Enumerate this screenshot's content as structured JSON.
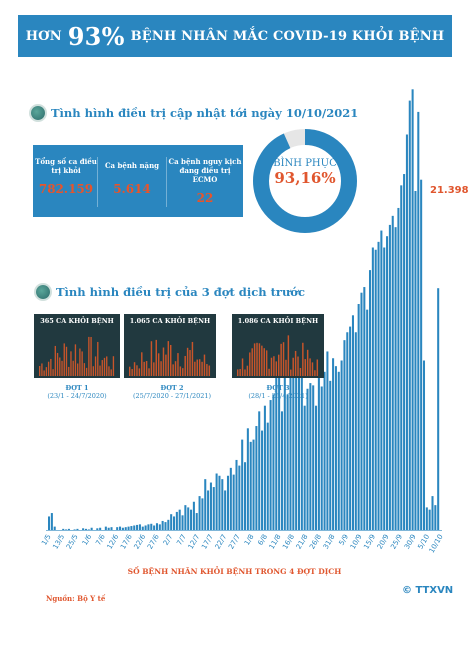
{
  "header": {
    "pre": "HƠN",
    "big": "93%",
    "post": "BỆNH NHÂN MẮC COVID-19 KHỎI BỆNH"
  },
  "section1": {
    "title": "Tình hình điều trị cập nhật tới ngày 10/10/2021"
  },
  "stats": [
    {
      "label": "Tổng số ca điều trị khỏi",
      "value": "782.159"
    },
    {
      "label": "Ca bệnh nặng",
      "value": "5.614"
    },
    {
      "label": "Ca bệnh nguy kịch đang điều trị ECMO",
      "value": "22"
    }
  ],
  "donut": {
    "label": "BÌNH PHỤC",
    "value_text": "93,16%",
    "percent": 93.16
  },
  "section2": {
    "title": "Tình hình điều trị của 3 đợt dịch trước"
  },
  "waves": [
    {
      "box_title": "365 CA KHỎI BỆNH",
      "name": "ĐỢT 1",
      "range": "(23/1 - 24/7/2020)"
    },
    {
      "box_title": "1.065 CA KHỎI BỆNH",
      "name": "ĐỢT 2",
      "range": "(25/7/2020 - 27/1/2021)"
    },
    {
      "box_title": "1.086 CA KHỎI BỆNH",
      "name": "ĐỢT 3",
      "range": "(28/1 - 26/4/2021)"
    }
  ],
  "last_value_label": "21.398",
  "footer": {
    "chart_title": "SỐ BỆNH NHÂN KHỎI BỆNH TRONG 4 ĐỢT DỊCH",
    "source": "Nguồn: Bộ Y tế",
    "logo": "© TTXVN"
  },
  "colors": {
    "accent": "#2a86bf",
    "highlight": "#e0562e",
    "dark_box": "#21393f"
  },
  "chart_data": {
    "type": "bar",
    "title": "SỐ BỆNH NHÂN KHỎI BỆNH TRONG 4 ĐỢT DỊCH",
    "xlabel": "",
    "ylabel": "",
    "x_tick_labels": [
      "1/5",
      "13/5",
      "25/5",
      "1/6",
      "7/6",
      "12/6",
      "17/6",
      "22/6",
      "27/6",
      "2/7",
      "7/7",
      "12/7",
      "17/7",
      "22/7",
      "27/7",
      "1/8",
      "6/8",
      "11/8",
      "16/8",
      "21/8",
      "26/8",
      "31/8",
      "5/9",
      "10/9",
      "15/9",
      "20/9",
      "25/9",
      "30/9",
      "5/10",
      "10/10"
    ],
    "values": [
      1200,
      1500,
      300,
      0,
      0,
      100,
      50,
      100,
      0,
      50,
      100,
      0,
      150,
      100,
      50,
      200,
      0,
      150,
      200,
      0,
      300,
      200,
      250,
      0,
      250,
      300,
      200,
      250,
      300,
      350,
      400,
      450,
      500,
      300,
      400,
      500,
      550,
      400,
      600,
      500,
      800,
      700,
      900,
      1400,
      1200,
      1600,
      1800,
      1300,
      2200,
      2000,
      1800,
      2500,
      1500,
      3000,
      2800,
      4500,
      3500,
      4200,
      3800,
      5000,
      4800,
      4500,
      3500,
      4800,
      5500,
      4900,
      6200,
      5700,
      8000,
      6000,
      9000,
      7800,
      8000,
      9200,
      10500,
      8800,
      11000,
      9500,
      11500,
      12000,
      13500,
      14500,
      10500,
      16000,
      12000,
      15500,
      15000,
      14200,
      14800,
      16500,
      11000,
      12500,
      13000,
      12800,
      11000,
      13500,
      12700,
      14000,
      15800,
      13200,
      15200,
      14500,
      14000,
      15000,
      16800,
      17500,
      18000,
      19000,
      17500,
      20000,
      21000,
      21500,
      19500,
      23000,
      25000,
      24800,
      25500,
      26500,
      25000,
      26000,
      27000,
      27800,
      26800,
      28500,
      30500,
      31500,
      35000,
      38000,
      39000,
      30000,
      37000,
      31000,
      15000,
      2000,
      1800,
      3000,
      2200,
      21398
    ],
    "ylim": [
      0,
      40000
    ],
    "highlighted_last_value": 21398
  }
}
